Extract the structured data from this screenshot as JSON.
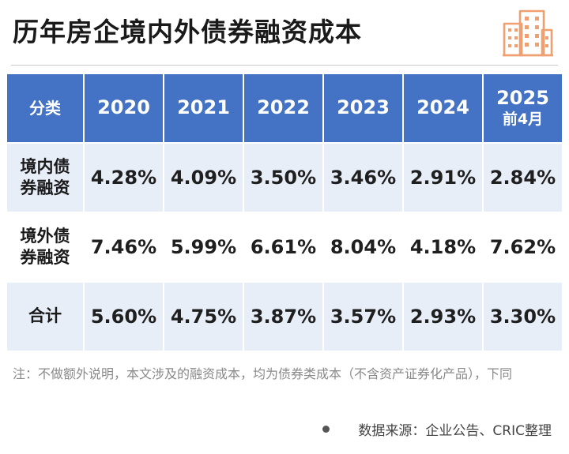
{
  "header": {
    "title": "历年房企境内外债券融资成本",
    "logo_icon": "building-icon",
    "accent_color": "#f0a070"
  },
  "table": {
    "header_bg": "#4472c4",
    "alt_row_bg": "#e8eef8",
    "columns": [
      {
        "label": "分类",
        "sub": ""
      },
      {
        "label": "2020",
        "sub": ""
      },
      {
        "label": "2021",
        "sub": ""
      },
      {
        "label": "2022",
        "sub": ""
      },
      {
        "label": "2023",
        "sub": ""
      },
      {
        "label": "2024",
        "sub": ""
      },
      {
        "label": "2025",
        "sub": "前4月"
      }
    ],
    "rows": [
      {
        "label_line1": "境内债",
        "label_line2": "券融资",
        "values": [
          "4.28%",
          "4.09%",
          "3.50%",
          "3.46%",
          "2.91%",
          "2.84%"
        ]
      },
      {
        "label_line1": "境外债",
        "label_line2": "券融资",
        "values": [
          "7.46%",
          "5.99%",
          "6.61%",
          "8.04%",
          "4.18%",
          "7.62%"
        ]
      },
      {
        "label_line1": "合计",
        "label_line2": "",
        "values": [
          "5.60%",
          "4.75%",
          "3.87%",
          "3.57%",
          "2.93%",
          "3.30%"
        ]
      }
    ]
  },
  "chart_data": {
    "type": "table",
    "title": "历年房企境内外债券融资成本",
    "columns": [
      "分类",
      "2020",
      "2021",
      "2022",
      "2023",
      "2024",
      "2025前4月"
    ],
    "rows": [
      {
        "category": "境内债券融资",
        "values": [
          4.28,
          4.09,
          3.5,
          3.46,
          2.91,
          2.84
        ]
      },
      {
        "category": "境外债券融资",
        "values": [
          7.46,
          5.99,
          6.61,
          8.04,
          4.18,
          7.62
        ]
      },
      {
        "category": "合计",
        "values": [
          5.6,
          4.75,
          3.87,
          3.57,
          2.93,
          3.3
        ]
      }
    ]
  },
  "note": "注：不做额外说明，本文涉及的融资成本，均为债券类成本（不含资产证券化产品），下同",
  "source": "数据来源：企业公告、CRIC整理"
}
